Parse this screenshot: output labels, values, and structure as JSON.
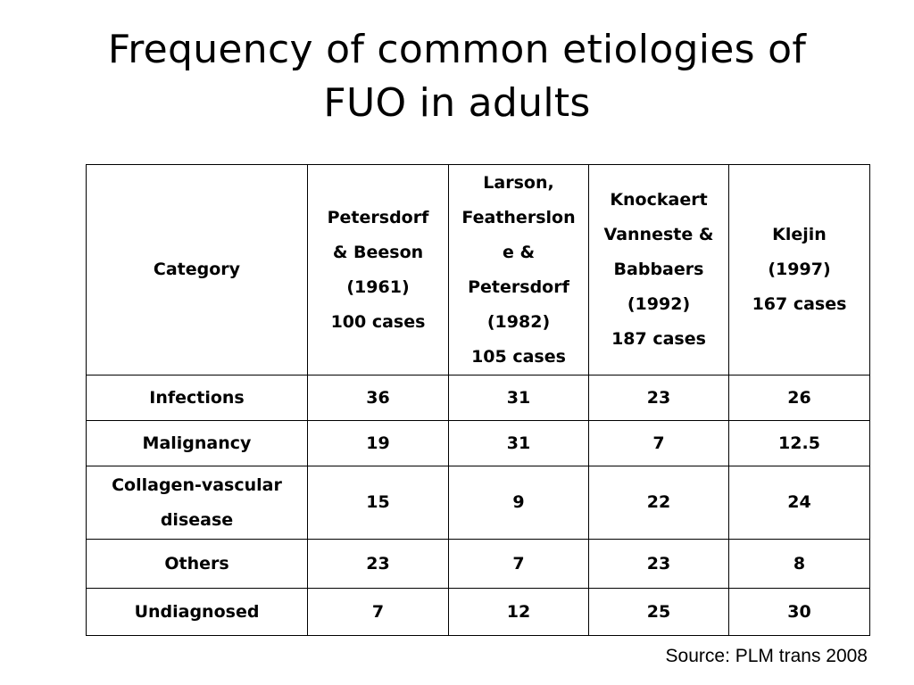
{
  "title": {
    "line1": "Frequency of common etiologies of",
    "line2": "FUO in adults"
  },
  "table": {
    "header": {
      "category": "Category",
      "col1": [
        "Petersdorf",
        "& Beeson",
        "(1961)",
        "100 cases"
      ],
      "col2": [
        "Larson,",
        "Feathersl​on",
        "e &",
        "Petersdorf",
        "(1982)",
        "105 cases"
      ],
      "col3": [
        "Knockaert",
        "Vanneste &",
        "Babbaers",
        "(1992)",
        "187 cases"
      ],
      "col4": [
        "Klejin",
        "(1997)",
        "167 cases"
      ]
    },
    "rows": [
      {
        "category": "Infections",
        "values": [
          "36",
          "31",
          "23",
          "26"
        ]
      },
      {
        "category": "Malignancy",
        "values": [
          "19",
          "31",
          "7",
          "12.5"
        ]
      },
      {
        "category_lines": [
          "Collagen-vascular",
          "disease"
        ],
        "values": [
          "15",
          "9",
          "22",
          "24"
        ]
      },
      {
        "category": "Others",
        "values": [
          "23",
          "7",
          "23",
          "8"
        ]
      },
      {
        "category": "Undiagnosed",
        "values": [
          "7",
          "12",
          "25",
          "30"
        ]
      }
    ]
  },
  "source": "Source: PLM trans 2008"
}
